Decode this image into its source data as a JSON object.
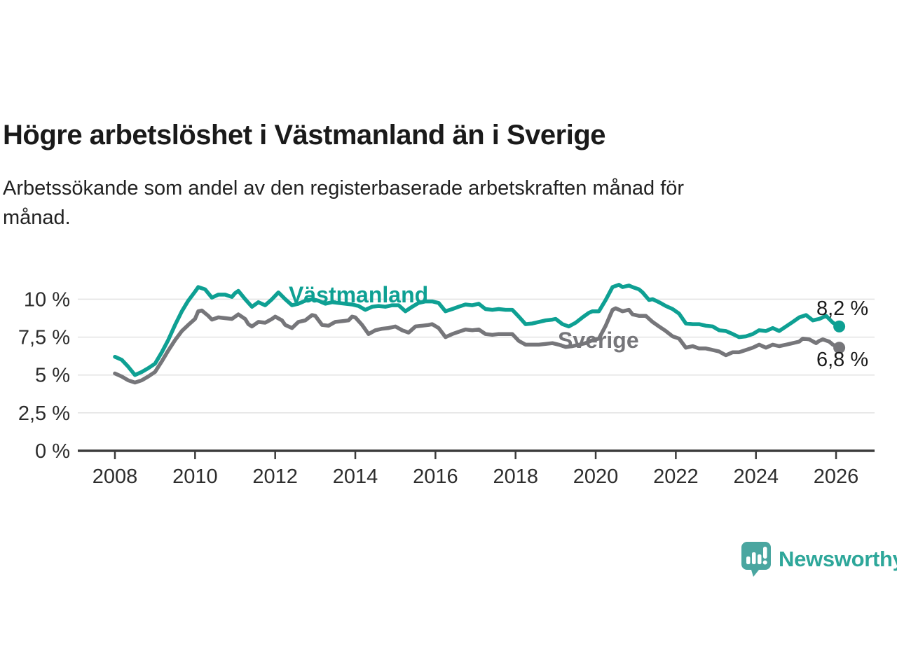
{
  "header": {
    "title": "Högre arbetslöshet i Västmanland än i Sverige",
    "subtitle_line1": "Arbetssökande som andel av den registerbaserade arbetskraften månad för",
    "subtitle_line2": "månad."
  },
  "branding": {
    "logo_text": "Newsworthy",
    "logo_icon": "bar-chart-speech-bubble-icon",
    "logo_color": "#2ea79a",
    "logo_icon_color": "#4aa6a0"
  },
  "colors": {
    "vastmanland_line": "#0ea093",
    "sverige_line": "#76767a",
    "gridline": "#e2e2e2",
    "axis": "#3c3c3c",
    "text": "#1a1a1a"
  },
  "chart_data": {
    "type": "line",
    "title": "Högre arbetslöshet i Västmanland än i Sverige",
    "subtitle": "Arbetssökande som andel av den registerbaserade arbetskraften månad för månad.",
    "xlabel": "",
    "ylabel": "",
    "grid": true,
    "legend_position": "inline-labels",
    "x_axis": {
      "ticks": [
        2008,
        2010,
        2012,
        2014,
        2016,
        2018,
        2020,
        2022,
        2024,
        2026
      ],
      "range": [
        2007.1,
        2027.0
      ]
    },
    "y_axis": {
      "ticks": [
        0,
        2.5,
        5,
        7.5,
        10
      ],
      "tick_labels": [
        "0 %",
        "2,5 %",
        "5 %",
        "7,5 %",
        "10 %"
      ],
      "range": [
        0,
        12.2
      ],
      "unit": "percent"
    },
    "series": [
      {
        "name": "Västmanland",
        "color": "#0ea093",
        "end_label": "8,2 %",
        "end_value": 8.2,
        "points": [
          [
            2008.0,
            6.2
          ],
          [
            2008.17,
            6.0
          ],
          [
            2008.33,
            5.55
          ],
          [
            2008.5,
            5.0
          ],
          [
            2008.67,
            5.2
          ],
          [
            2008.83,
            5.45
          ],
          [
            2009.0,
            5.75
          ],
          [
            2009.17,
            6.5
          ],
          [
            2009.33,
            7.3
          ],
          [
            2009.5,
            8.3
          ],
          [
            2009.67,
            9.2
          ],
          [
            2009.83,
            9.9
          ],
          [
            2010.0,
            10.5
          ],
          [
            2010.08,
            10.8
          ],
          [
            2010.25,
            10.65
          ],
          [
            2010.42,
            10.1
          ],
          [
            2010.58,
            10.3
          ],
          [
            2010.75,
            10.3
          ],
          [
            2010.92,
            10.15
          ],
          [
            2011.0,
            10.4
          ],
          [
            2011.08,
            10.55
          ],
          [
            2011.25,
            10.0
          ],
          [
            2011.42,
            9.5
          ],
          [
            2011.58,
            9.8
          ],
          [
            2011.75,
            9.6
          ],
          [
            2011.92,
            10.0
          ],
          [
            2012.08,
            10.45
          ],
          [
            2012.25,
            10.0
          ],
          [
            2012.42,
            9.6
          ],
          [
            2012.58,
            9.7
          ],
          [
            2012.75,
            9.9
          ],
          [
            2012.92,
            10.0
          ],
          [
            2013.08,
            9.9
          ],
          [
            2013.25,
            9.7
          ],
          [
            2013.42,
            9.8
          ],
          [
            2013.58,
            9.75
          ],
          [
            2013.75,
            9.7
          ],
          [
            2013.92,
            9.65
          ],
          [
            2014.08,
            9.55
          ],
          [
            2014.25,
            9.3
          ],
          [
            2014.42,
            9.5
          ],
          [
            2014.58,
            9.55
          ],
          [
            2014.75,
            9.5
          ],
          [
            2014.92,
            9.6
          ],
          [
            2015.08,
            9.6
          ],
          [
            2015.25,
            9.2
          ],
          [
            2015.42,
            9.5
          ],
          [
            2015.58,
            9.75
          ],
          [
            2015.75,
            9.85
          ],
          [
            2015.92,
            9.85
          ],
          [
            2016.08,
            9.75
          ],
          [
            2016.25,
            9.2
          ],
          [
            2016.42,
            9.35
          ],
          [
            2016.58,
            9.5
          ],
          [
            2016.75,
            9.65
          ],
          [
            2016.92,
            9.6
          ],
          [
            2017.08,
            9.7
          ],
          [
            2017.25,
            9.35
          ],
          [
            2017.42,
            9.3
          ],
          [
            2017.58,
            9.35
          ],
          [
            2017.75,
            9.3
          ],
          [
            2017.92,
            9.3
          ],
          [
            2018.08,
            8.85
          ],
          [
            2018.25,
            8.35
          ],
          [
            2018.42,
            8.4
          ],
          [
            2018.58,
            8.5
          ],
          [
            2018.75,
            8.6
          ],
          [
            2018.92,
            8.65
          ],
          [
            2019.0,
            8.7
          ],
          [
            2019.17,
            8.35
          ],
          [
            2019.33,
            8.2
          ],
          [
            2019.5,
            8.45
          ],
          [
            2019.67,
            8.8
          ],
          [
            2019.83,
            9.1
          ],
          [
            2019.92,
            9.2
          ],
          [
            2020.08,
            9.2
          ],
          [
            2020.25,
            9.95
          ],
          [
            2020.42,
            10.8
          ],
          [
            2020.58,
            10.95
          ],
          [
            2020.67,
            10.8
          ],
          [
            2020.83,
            10.9
          ],
          [
            2020.92,
            10.8
          ],
          [
            2021.08,
            10.65
          ],
          [
            2021.17,
            10.45
          ],
          [
            2021.33,
            9.95
          ],
          [
            2021.42,
            10.0
          ],
          [
            2021.58,
            9.8
          ],
          [
            2021.75,
            9.55
          ],
          [
            2021.92,
            9.35
          ],
          [
            2022.08,
            9.05
          ],
          [
            2022.25,
            8.4
          ],
          [
            2022.42,
            8.35
          ],
          [
            2022.58,
            8.35
          ],
          [
            2022.75,
            8.25
          ],
          [
            2022.92,
            8.2
          ],
          [
            2023.08,
            7.95
          ],
          [
            2023.25,
            7.9
          ],
          [
            2023.42,
            7.7
          ],
          [
            2023.58,
            7.5
          ],
          [
            2023.75,
            7.55
          ],
          [
            2023.92,
            7.7
          ],
          [
            2024.08,
            7.95
          ],
          [
            2024.25,
            7.9
          ],
          [
            2024.42,
            8.1
          ],
          [
            2024.58,
            7.9
          ],
          [
            2024.75,
            8.2
          ],
          [
            2024.92,
            8.5
          ],
          [
            2025.08,
            8.8
          ],
          [
            2025.25,
            8.95
          ],
          [
            2025.42,
            8.6
          ],
          [
            2025.58,
            8.7
          ],
          [
            2025.75,
            8.9
          ],
          [
            2025.92,
            8.45
          ],
          [
            2026.08,
            8.2
          ]
        ]
      },
      {
        "name": "Sverige",
        "color": "#76767a",
        "end_label": "6,8 %",
        "end_value": 6.8,
        "points": [
          [
            2008.0,
            5.1
          ],
          [
            2008.17,
            4.9
          ],
          [
            2008.33,
            4.65
          ],
          [
            2008.5,
            4.5
          ],
          [
            2008.67,
            4.65
          ],
          [
            2008.83,
            4.9
          ],
          [
            2009.0,
            5.2
          ],
          [
            2009.17,
            5.9
          ],
          [
            2009.33,
            6.6
          ],
          [
            2009.5,
            7.3
          ],
          [
            2009.67,
            7.9
          ],
          [
            2009.83,
            8.3
          ],
          [
            2010.0,
            8.7
          ],
          [
            2010.08,
            9.2
          ],
          [
            2010.17,
            9.25
          ],
          [
            2010.33,
            8.9
          ],
          [
            2010.42,
            8.65
          ],
          [
            2010.58,
            8.8
          ],
          [
            2010.75,
            8.75
          ],
          [
            2010.92,
            8.7
          ],
          [
            2011.08,
            9.0
          ],
          [
            2011.25,
            8.7
          ],
          [
            2011.33,
            8.35
          ],
          [
            2011.42,
            8.2
          ],
          [
            2011.58,
            8.5
          ],
          [
            2011.75,
            8.45
          ],
          [
            2011.92,
            8.7
          ],
          [
            2012.0,
            8.85
          ],
          [
            2012.17,
            8.6
          ],
          [
            2012.25,
            8.3
          ],
          [
            2012.42,
            8.1
          ],
          [
            2012.58,
            8.5
          ],
          [
            2012.75,
            8.6
          ],
          [
            2012.92,
            8.95
          ],
          [
            2013.0,
            8.9
          ],
          [
            2013.17,
            8.3
          ],
          [
            2013.33,
            8.25
          ],
          [
            2013.5,
            8.5
          ],
          [
            2013.67,
            8.55
          ],
          [
            2013.83,
            8.6
          ],
          [
            2013.92,
            8.85
          ],
          [
            2014.0,
            8.8
          ],
          [
            2014.17,
            8.3
          ],
          [
            2014.33,
            7.7
          ],
          [
            2014.5,
            7.95
          ],
          [
            2014.67,
            8.05
          ],
          [
            2014.83,
            8.1
          ],
          [
            2015.0,
            8.2
          ],
          [
            2015.17,
            7.95
          ],
          [
            2015.33,
            7.8
          ],
          [
            2015.5,
            8.2
          ],
          [
            2015.67,
            8.25
          ],
          [
            2015.83,
            8.3
          ],
          [
            2015.92,
            8.35
          ],
          [
            2016.08,
            8.1
          ],
          [
            2016.25,
            7.5
          ],
          [
            2016.42,
            7.7
          ],
          [
            2016.58,
            7.85
          ],
          [
            2016.75,
            8.0
          ],
          [
            2016.92,
            7.95
          ],
          [
            2017.08,
            8.0
          ],
          [
            2017.25,
            7.7
          ],
          [
            2017.42,
            7.65
          ],
          [
            2017.58,
            7.7
          ],
          [
            2017.75,
            7.7
          ],
          [
            2017.92,
            7.7
          ],
          [
            2018.08,
            7.25
          ],
          [
            2018.25,
            7.0
          ],
          [
            2018.42,
            7.0
          ],
          [
            2018.58,
            7.0
          ],
          [
            2018.75,
            7.05
          ],
          [
            2018.92,
            7.1
          ],
          [
            2019.08,
            7.0
          ],
          [
            2019.25,
            6.85
          ],
          [
            2019.42,
            6.9
          ],
          [
            2019.58,
            7.0
          ],
          [
            2019.75,
            7.1
          ],
          [
            2019.92,
            7.3
          ],
          [
            2020.08,
            7.4
          ],
          [
            2020.25,
            8.25
          ],
          [
            2020.42,
            9.3
          ],
          [
            2020.5,
            9.4
          ],
          [
            2020.67,
            9.2
          ],
          [
            2020.83,
            9.3
          ],
          [
            2020.92,
            9.0
          ],
          [
            2021.08,
            8.9
          ],
          [
            2021.25,
            8.9
          ],
          [
            2021.42,
            8.5
          ],
          [
            2021.58,
            8.2
          ],
          [
            2021.75,
            7.9
          ],
          [
            2021.92,
            7.55
          ],
          [
            2022.08,
            7.4
          ],
          [
            2022.25,
            6.8
          ],
          [
            2022.42,
            6.9
          ],
          [
            2022.58,
            6.75
          ],
          [
            2022.75,
            6.75
          ],
          [
            2022.92,
            6.65
          ],
          [
            2023.08,
            6.55
          ],
          [
            2023.25,
            6.3
          ],
          [
            2023.42,
            6.5
          ],
          [
            2023.58,
            6.5
          ],
          [
            2023.75,
            6.65
          ],
          [
            2023.92,
            6.8
          ],
          [
            2024.08,
            7.0
          ],
          [
            2024.25,
            6.8
          ],
          [
            2024.42,
            7.0
          ],
          [
            2024.58,
            6.9
          ],
          [
            2024.75,
            7.0
          ],
          [
            2024.92,
            7.1
          ],
          [
            2025.08,
            7.2
          ],
          [
            2025.17,
            7.4
          ],
          [
            2025.33,
            7.35
          ],
          [
            2025.5,
            7.1
          ],
          [
            2025.58,
            7.25
          ],
          [
            2025.67,
            7.35
          ],
          [
            2025.83,
            7.2
          ],
          [
            2025.92,
            7.0
          ],
          [
            2026.08,
            6.8
          ]
        ]
      }
    ]
  }
}
